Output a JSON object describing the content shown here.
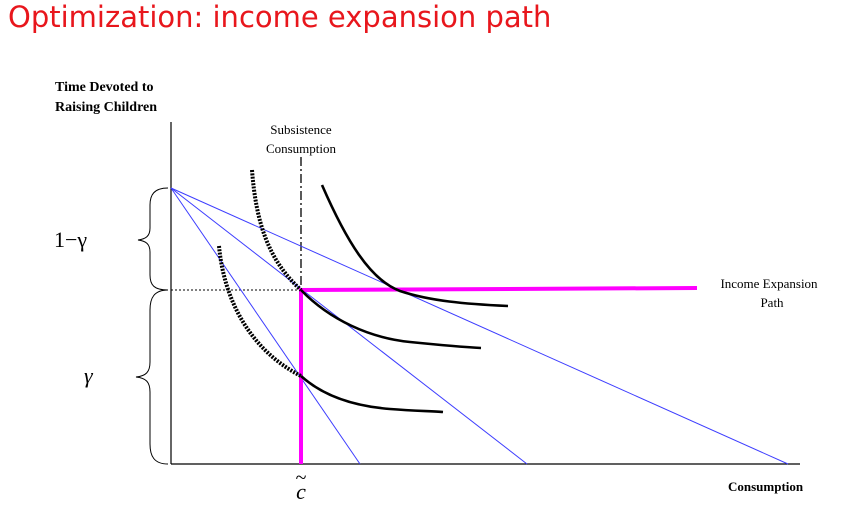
{
  "slide": {
    "title": "Optimization: income expansion path"
  },
  "diagram": {
    "y_axis_label_line1": "Time Devoted to",
    "y_axis_label_line2": "Raising Children",
    "x_axis_label": "Consumption",
    "subsistence_line1": "Subsistence",
    "subsistence_line2": "Consumption",
    "expansion_line1": "Income Expansion",
    "expansion_line2": "Path",
    "brace_upper_label": "1−γ",
    "brace_lower_label": "γ",
    "c_tilde_label": "c",
    "c_tilde_accent": "~",
    "colors": {
      "budget_lines": "#3d3dff",
      "expansion_path": "#ff00ff",
      "curves": "#000000",
      "title": "#e8161c"
    }
  }
}
